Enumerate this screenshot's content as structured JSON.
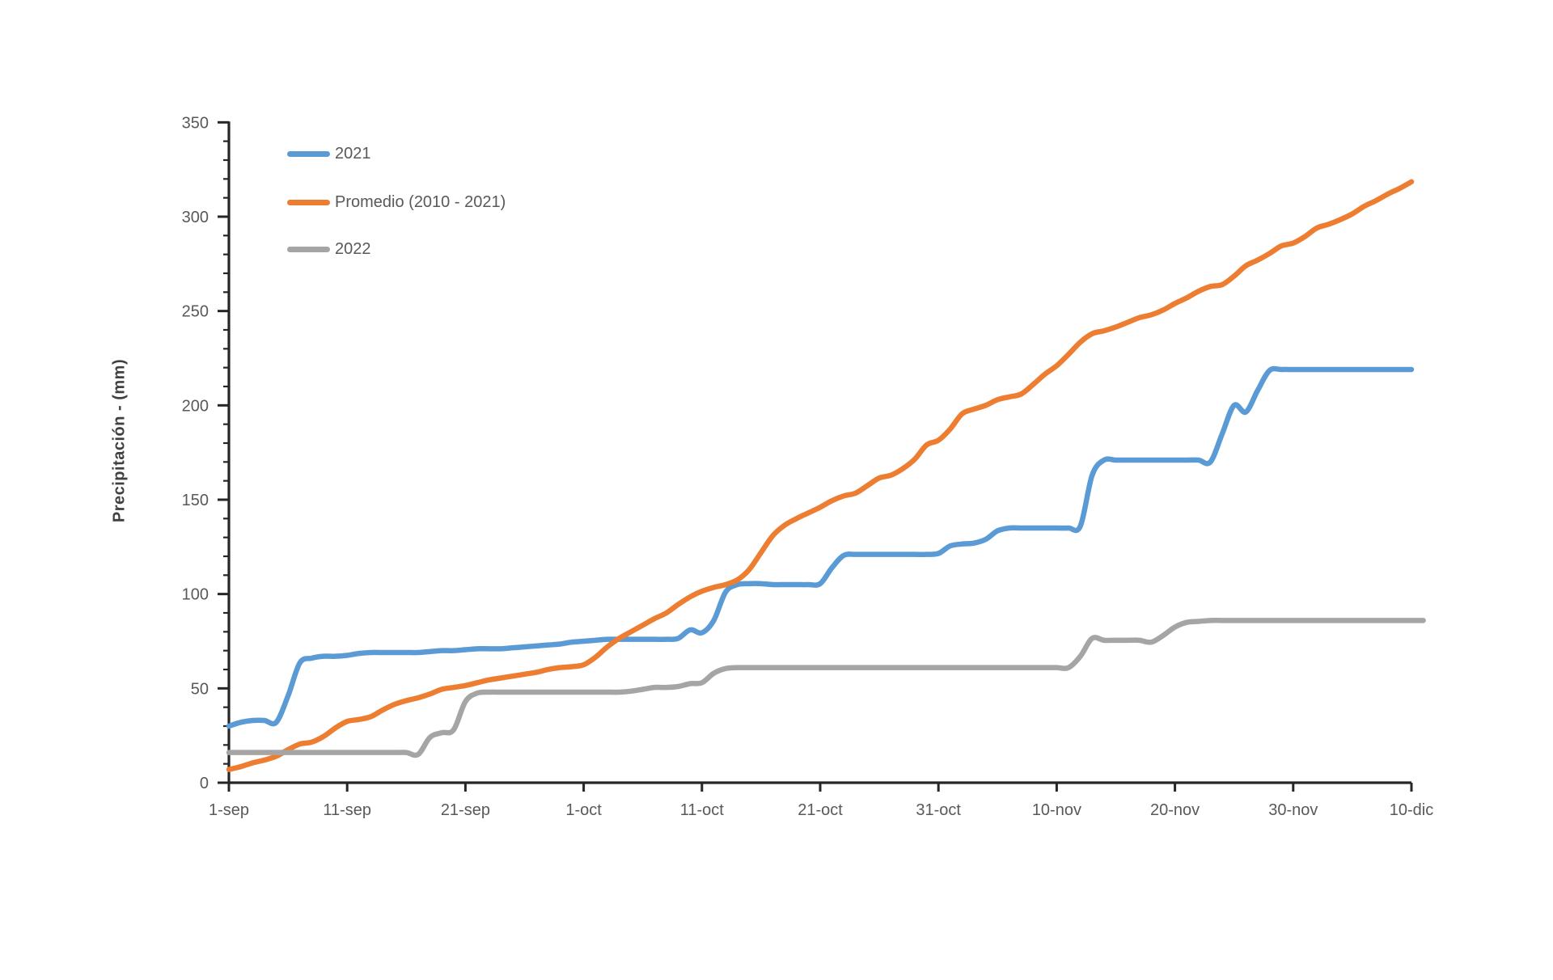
{
  "page": {
    "background": "#ffffff"
  },
  "colors": {
    "axis": "#262626",
    "tick_text": "#595959",
    "axis_title_text": "#404040",
    "series_2021": "#5B9BD5",
    "series_promedio": "#ED7D31",
    "series_2022": "#A5A5A5"
  },
  "chart_data": {
    "type": "line",
    "title": "",
    "xlabel": "",
    "ylabel": "Precipitación - (mm)",
    "grid": false,
    "legend_position": "top-left-inside",
    "ylim": [
      0,
      350
    ],
    "ytick_step": 50,
    "yminor_step": 10,
    "x_unit": "days since 1-sep",
    "x_tick_days": [
      0,
      10,
      20,
      30,
      40,
      50,
      60,
      70,
      80,
      90,
      100
    ],
    "x_tick_labels": [
      "1-sep",
      "11-sep",
      "21-sep",
      "1-oct",
      "11-oct",
      "21-oct",
      "31-oct",
      "10-nov",
      "20-nov",
      "30-nov",
      "10-dic"
    ],
    "series": [
      {
        "name": "2021",
        "color": "#5B9BD5",
        "values": [
          30,
          32,
          33,
          33,
          32,
          46,
          63.5,
          66,
          67,
          67,
          67.5,
          68.5,
          69,
          69,
          69,
          69,
          69,
          69.5,
          70,
          70,
          70.5,
          71,
          71,
          71,
          71.5,
          72,
          72.5,
          73,
          73.5,
          74.5,
          75,
          75.5,
          76,
          76,
          76,
          76,
          76,
          76,
          76.5,
          81,
          79.5,
          86,
          101,
          105,
          105.5,
          105.5,
          105,
          105,
          105,
          105,
          105.5,
          114,
          120.5,
          121,
          121,
          121,
          121,
          121,
          121,
          121,
          121.5,
          125.5,
          126.5,
          127,
          129,
          133.5,
          135,
          135,
          135,
          135,
          135,
          135,
          136,
          163,
          171,
          171,
          171,
          171,
          171,
          171,
          171,
          171,
          171,
          170,
          185,
          200,
          196.5,
          208,
          218.5,
          219,
          219,
          219,
          219,
          219,
          219,
          219,
          219,
          219,
          219,
          219,
          219
        ]
      },
      {
        "name": "Promedio (2010 - 2021)",
        "color": "#ED7D31",
        "values": [
          7,
          8.5,
          10.5,
          12,
          14,
          17.5,
          20.5,
          21.5,
          24.5,
          29,
          32.5,
          33.5,
          35,
          38.5,
          41.5,
          43.5,
          45,
          47,
          49.5,
          50.5,
          51.5,
          53,
          54.5,
          55.5,
          56.5,
          57.5,
          58.5,
          60,
          61,
          61.5,
          62.5,
          66.5,
          72,
          76.5,
          80,
          83.5,
          87,
          90,
          94.5,
          98.5,
          101.5,
          103.5,
          105,
          107.5,
          113,
          122,
          131,
          136.5,
          140,
          143,
          146,
          149.5,
          152,
          153.5,
          157.5,
          161.5,
          163,
          166.5,
          171.5,
          179,
          181.5,
          187.5,
          195.5,
          198,
          200,
          203,
          204.5,
          206,
          211,
          216.5,
          221,
          227,
          233.5,
          238,
          239.5,
          241.5,
          244,
          246.5,
          248,
          250.5,
          254,
          257,
          260.5,
          263,
          264,
          268.5,
          274,
          277,
          280.5,
          284.5,
          286,
          289.5,
          294,
          296,
          298.5,
          301.5,
          305.5,
          308.5,
          312,
          315,
          318.5
        ]
      },
      {
        "name": "2022",
        "color": "#A5A5A5",
        "values": [
          16,
          16,
          16,
          16,
          16,
          16,
          16,
          16,
          16,
          16,
          16,
          16,
          16,
          16,
          16,
          16,
          15,
          24,
          26.5,
          28,
          43,
          47.5,
          48,
          48,
          48,
          48,
          48,
          48,
          48,
          48,
          48,
          48,
          48,
          48,
          48.5,
          49.5,
          50.5,
          50.5,
          51,
          52.5,
          53,
          58,
          60.5,
          61,
          61,
          61,
          61,
          61,
          61,
          61,
          61,
          61,
          61,
          61,
          61,
          61,
          61,
          61,
          61,
          61,
          61,
          61,
          61,
          61,
          61,
          61,
          61,
          61,
          61,
          61,
          61,
          61,
          67,
          76.5,
          75.5,
          75.5,
          75.5,
          75.5,
          74.5,
          78,
          82.5,
          85,
          85.5,
          86,
          86,
          86,
          86,
          86,
          86,
          86,
          86,
          86,
          86,
          86,
          86,
          86,
          86,
          86,
          86,
          86,
          86,
          86
        ]
      }
    ]
  }
}
